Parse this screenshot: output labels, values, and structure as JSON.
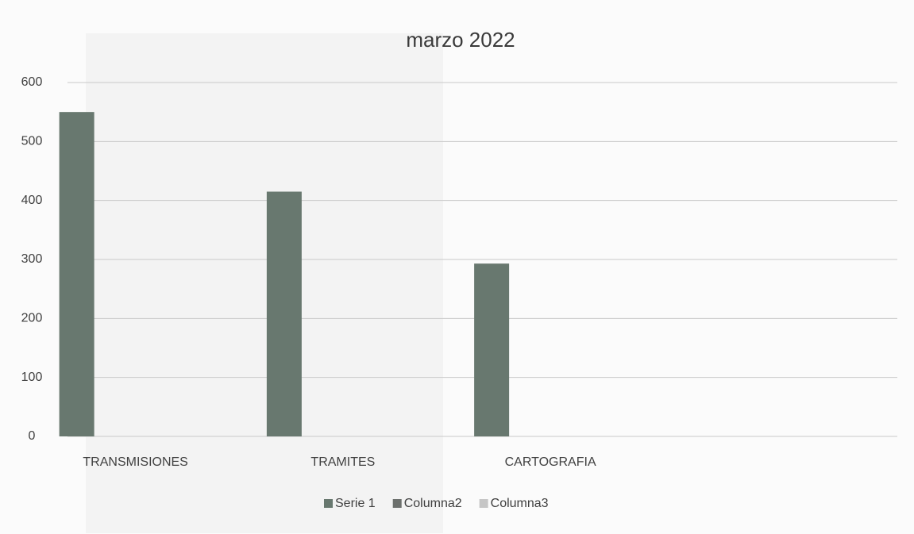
{
  "chart_data": {
    "type": "bar",
    "title": "marzo 2022",
    "categories": [
      "TRANSMISIONES",
      "TRAMITES",
      "CARTOGRAFIA",
      null
    ],
    "series": [
      {
        "name": "Serie 1",
        "color": "#68786f",
        "values": [
          550,
          415,
          293,
          null
        ]
      },
      {
        "name": "Columna2",
        "color": "#6c706d",
        "values": [
          null,
          null,
          null,
          null
        ]
      },
      {
        "name": "Columna3",
        "color": "#c6c6c6",
        "values": [
          null,
          null,
          null,
          null
        ]
      }
    ],
    "ylim": [
      0,
      600
    ],
    "yticks": [
      0,
      100,
      200,
      300,
      400,
      500,
      600
    ],
    "grid": true,
    "legend": "bottom"
  }
}
